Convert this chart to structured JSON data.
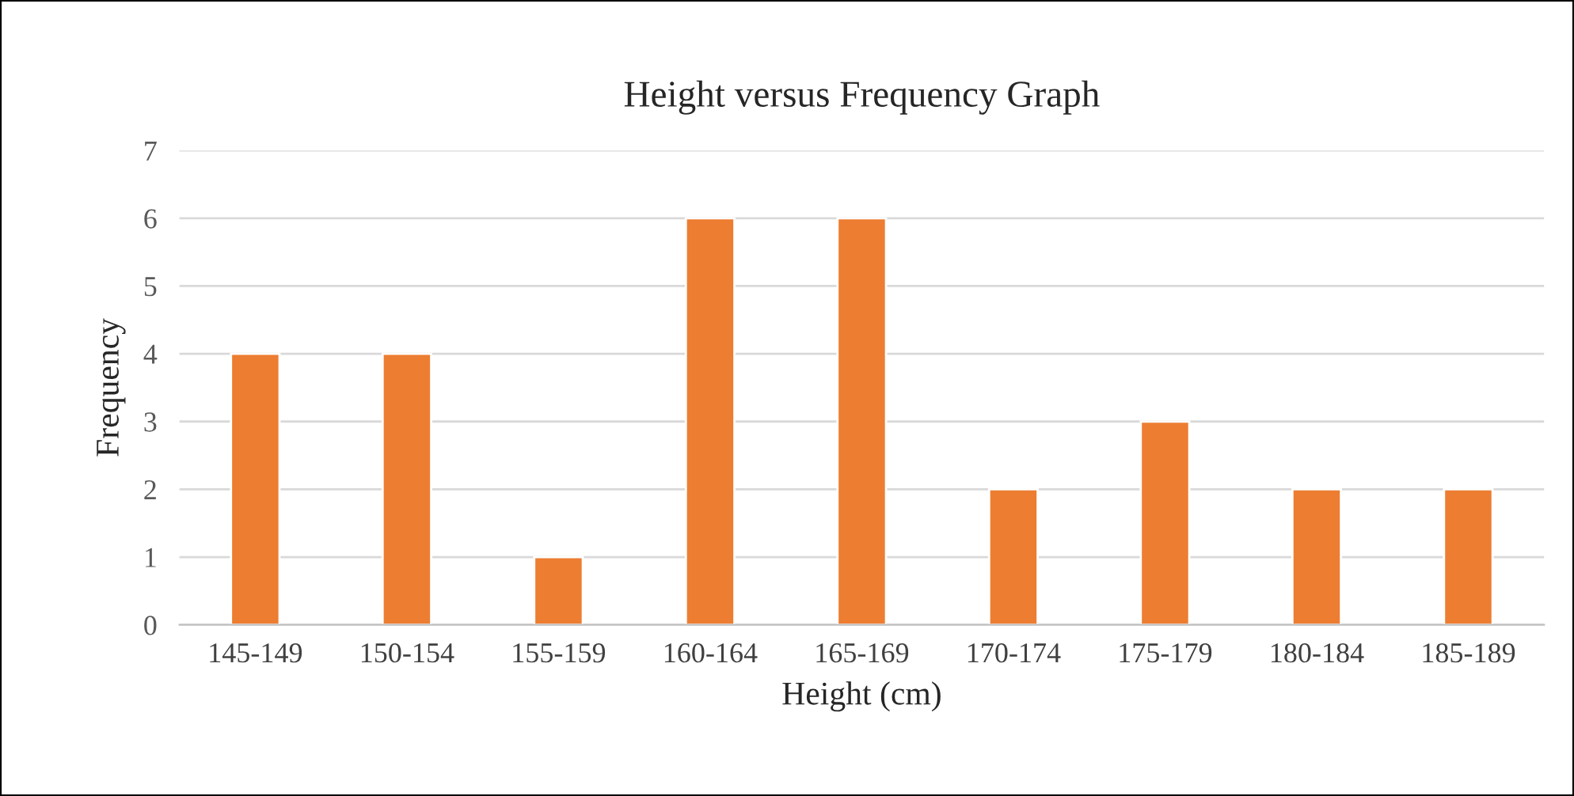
{
  "chart_data": {
    "type": "bar",
    "title": "Height versus Frequency Graph",
    "xlabel": "Height (cm)",
    "ylabel": "Frequency",
    "categories": [
      "145-149",
      "150-154",
      "155-159",
      "160-164",
      "165-169",
      "170-174",
      "175-179",
      "180-184",
      "185-189"
    ],
    "values": [
      4,
      4,
      1,
      6,
      6,
      2,
      3,
      2,
      2
    ],
    "color": "#ed7d31",
    "ylim": [
      0,
      7
    ],
    "yticks": [
      0,
      1,
      2,
      3,
      4,
      5,
      6,
      7
    ],
    "grid": "y",
    "legend": false
  }
}
